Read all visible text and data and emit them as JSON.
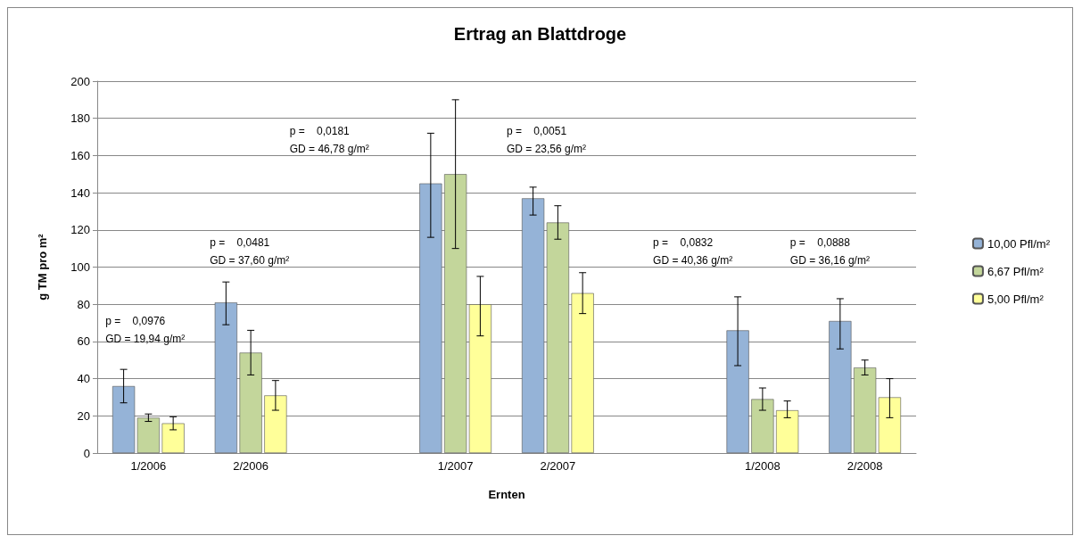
{
  "chart_data": {
    "type": "bar",
    "title": "Ertrag an Blattdroge",
    "xlabel": "Ernten",
    "ylabel": "g TM pro m²",
    "categories": [
      "1/2006",
      "2/2006",
      null,
      "1/2007",
      "2/2007",
      null,
      "1/2008",
      "2/2008"
    ],
    "series": [
      {
        "name": "10,00 Pfl/m²",
        "color": "#95b3d7",
        "values": [
          36,
          81,
          null,
          145,
          137,
          null,
          66,
          71
        ],
        "errors": [
          [
            27,
            45
          ],
          [
            69,
            92
          ],
          null,
          [
            116,
            172
          ],
          [
            128,
            143
          ],
          null,
          [
            47,
            84
          ],
          [
            56,
            83
          ]
        ]
      },
      {
        "name": "6,67 Pfl/m²",
        "color": "#c3d69b",
        "values": [
          19,
          54,
          null,
          150,
          124,
          null,
          29,
          46
        ],
        "errors": [
          [
            17,
            21
          ],
          [
            42,
            66
          ],
          null,
          [
            110,
            190
          ],
          [
            115,
            133
          ],
          null,
          [
            23,
            35
          ],
          [
            42,
            50
          ]
        ]
      },
      {
        "name": "5,00 Pfl/m²",
        "color": "#ffff99",
        "values": [
          16,
          31,
          null,
          80,
          86,
          null,
          23,
          30
        ],
        "errors": [
          [
            12.5,
            19.5
          ],
          [
            23,
            39
          ],
          null,
          [
            63,
            95
          ],
          [
            75,
            97
          ],
          null,
          [
            19,
            28
          ],
          [
            19,
            40
          ]
        ]
      }
    ],
    "annotations": [
      "p =    0,0976\nGD = 19,94 g/m²",
      "p =    0,0481\nGD = 37,60 g/m²",
      "p =    0,0181\nGD = 46,78 g/m²",
      "p =    0,0051\nGD = 23,56 g/m²",
      "p =    0,0832\nGD = 40,36 g/m²",
      "p =    0,0888\nGD = 36,16 g/m²"
    ],
    "ylim": [
      0,
      200
    ],
    "yticks": [
      0,
      20,
      40,
      60,
      80,
      100,
      120,
      140,
      160,
      180,
      200
    ],
    "grid": "y",
    "legend": "right"
  }
}
